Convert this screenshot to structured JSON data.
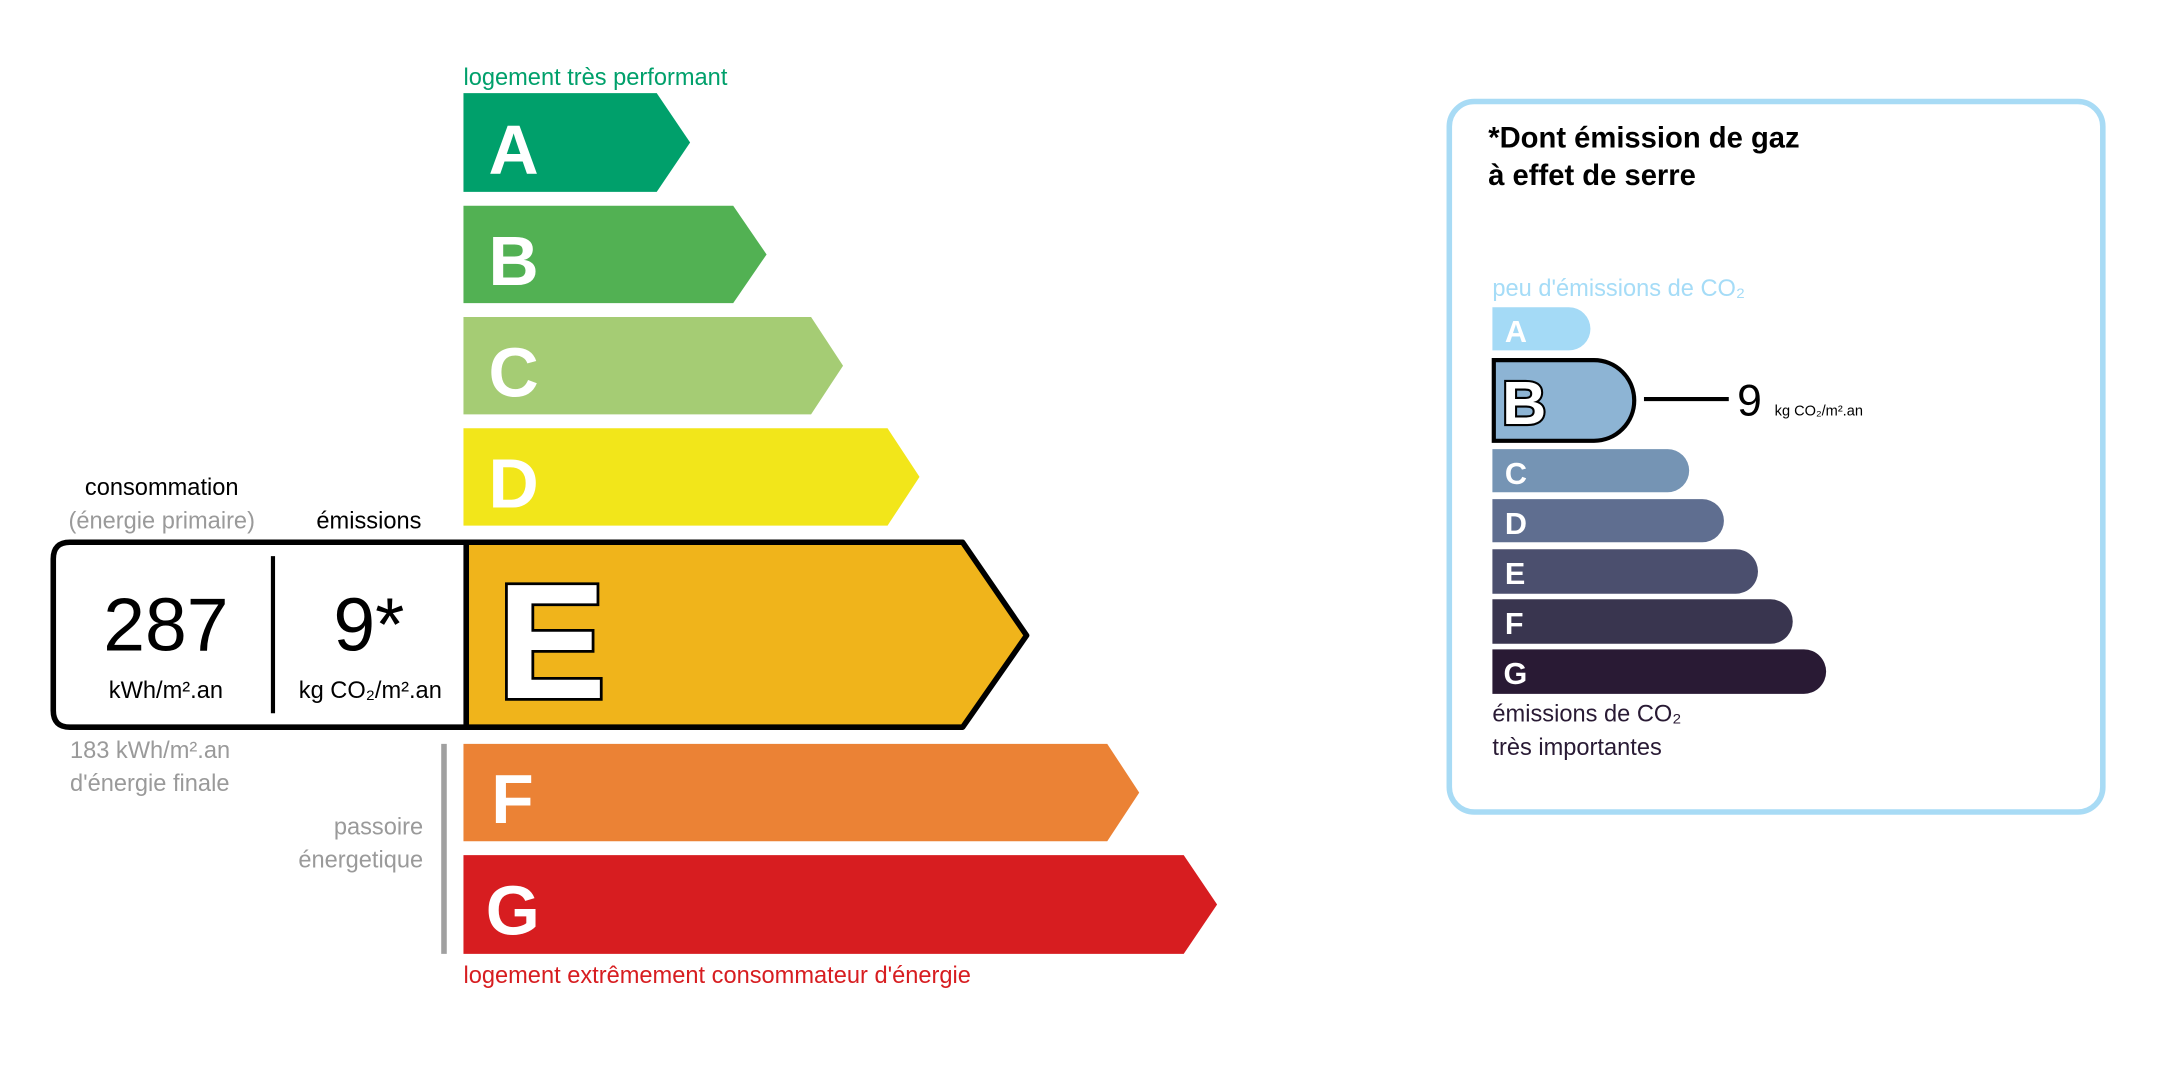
{
  "energy_label": {
    "top_caption": "logement très performant",
    "bottom_caption": "logement extrêmement consommateur d'énergie",
    "classes": [
      {
        "letter": "A",
        "color": "#00a06b"
      },
      {
        "letter": "B",
        "color": "#52b153"
      },
      {
        "letter": "C",
        "color": "#a5cc74"
      },
      {
        "letter": "D",
        "color": "#f2e61a"
      },
      {
        "letter": "E",
        "color": "#f0b41b"
      },
      {
        "letter": "F",
        "color": "#eb8235"
      },
      {
        "letter": "G",
        "color": "#d71d20"
      }
    ],
    "current_class": "E",
    "consumption_header": "consommation",
    "consumption_subheader": "(énergie primaire)",
    "emissions_header": "émissions",
    "consumption_value": "287",
    "consumption_unit": "kWh/m².an",
    "emissions_value": "9*",
    "emissions_unit": "kg CO₂/m².an",
    "final_energy_line1": "183 kWh/m².an",
    "final_energy_line2": "d'énergie finale",
    "passoire_line1": "passoire",
    "passoire_line2": "énergetique"
  },
  "ghg_panel": {
    "title_line1": "*Dont émission de gaz",
    "title_line2": "à effet de serre",
    "top_caption": "peu d'émissions de CO₂",
    "bottom_caption_line1": "émissions de CO₂",
    "bottom_caption_line2": "très importantes",
    "classes": [
      {
        "letter": "A",
        "color": "#a4daf6"
      },
      {
        "letter": "B",
        "color": "#8db4d4"
      },
      {
        "letter": "C",
        "color": "#7594b4"
      },
      {
        "letter": "D",
        "color": "#5f6e90"
      },
      {
        "letter": "E",
        "color": "#4b4f6e"
      },
      {
        "letter": "F",
        "color": "#39354f"
      },
      {
        "letter": "G",
        "color": "#291a34"
      }
    ],
    "current_class": "B",
    "value": "9",
    "unit": "kg CO₂/m².an",
    "border_color": "#a8dbf5"
  }
}
